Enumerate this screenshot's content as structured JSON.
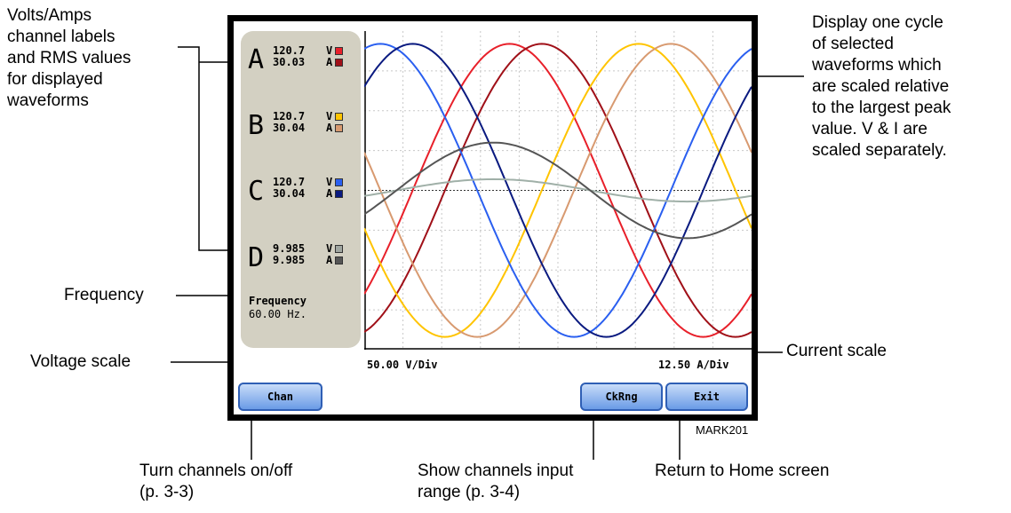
{
  "annotations": {
    "volts_amps": [
      "Volts/Amps",
      "channel labels",
      "and RMS values",
      "for displayed",
      "waveforms"
    ],
    "display_cycle": [
      "Display one cycle",
      "of selected",
      "waveforms which",
      "are scaled relative",
      "to the largest peak",
      "value. V & I are",
      "scaled separately."
    ],
    "frequency": "Frequency",
    "voltage_scale": "Voltage scale",
    "current_scale": "Current scale",
    "chan_note": [
      "Turn channels on/off",
      "(p. 3-3)"
    ],
    "ckrng_note": [
      "Show channels input",
      "range (p. 3-4)"
    ],
    "exit_note": "Return to Home screen",
    "figure_id": "MARK201"
  },
  "channels": [
    {
      "letter": "A",
      "volts": "120.7",
      "amps": "30.03",
      "v_unit": "V",
      "a_unit": "A",
      "v_color": "#e8202a",
      "a_color": "#a01018"
    },
    {
      "letter": "B",
      "volts": "120.7",
      "amps": "30.04",
      "v_unit": "V",
      "a_unit": "A",
      "v_color": "#ffc400",
      "a_color": "#d89a70"
    },
    {
      "letter": "C",
      "volts": "120.7",
      "amps": "30.04",
      "v_unit": "V",
      "a_unit": "A",
      "v_color": "#2a5ff0",
      "a_color": "#0a1a80"
    },
    {
      "letter": "D",
      "volts": "9.985",
      "amps": "9.985",
      "v_unit": "V",
      "a_unit": "A",
      "v_color": "#a0a6a0",
      "a_color": "#555555"
    }
  ],
  "frequency": {
    "title": "Frequency",
    "value": "60.00 Hz."
  },
  "scales": {
    "voltage": "50.00 V/Div",
    "current": "12.50 A/Div"
  },
  "buttons": {
    "chan": "Chan",
    "ckrng": "CkRng",
    "exit": "Exit"
  },
  "chart_data": {
    "type": "line",
    "x_range": [
      0,
      360
    ],
    "y_range": [
      -1,
      1
    ],
    "grid": true,
    "series": [
      {
        "channel": "A",
        "quantity": "V",
        "color": "#e8202a",
        "amplitude": 0.92,
        "phase_deg": 315
      },
      {
        "channel": "A",
        "quantity": "I",
        "color": "#a01018",
        "amplitude": 0.92,
        "phase_deg": 285
      },
      {
        "channel": "B",
        "quantity": "V",
        "color": "#ffc400",
        "amplitude": 0.92,
        "phase_deg": 195
      },
      {
        "channel": "B",
        "quantity": "I",
        "color": "#d89a70",
        "amplitude": 0.92,
        "phase_deg": 165
      },
      {
        "channel": "C",
        "quantity": "V",
        "color": "#2a5ff0",
        "amplitude": 0.92,
        "phase_deg": 75
      },
      {
        "channel": "C",
        "quantity": "I",
        "color": "#0a1a80",
        "amplitude": 0.92,
        "phase_deg": 45
      },
      {
        "channel": "D",
        "quantity": "V",
        "color": "#a0b0a8",
        "amplitude": 0.07,
        "phase_deg": 330
      },
      {
        "channel": "D",
        "quantity": "I",
        "color": "#555555",
        "amplitude": 0.3,
        "phase_deg": 330
      }
    ]
  }
}
